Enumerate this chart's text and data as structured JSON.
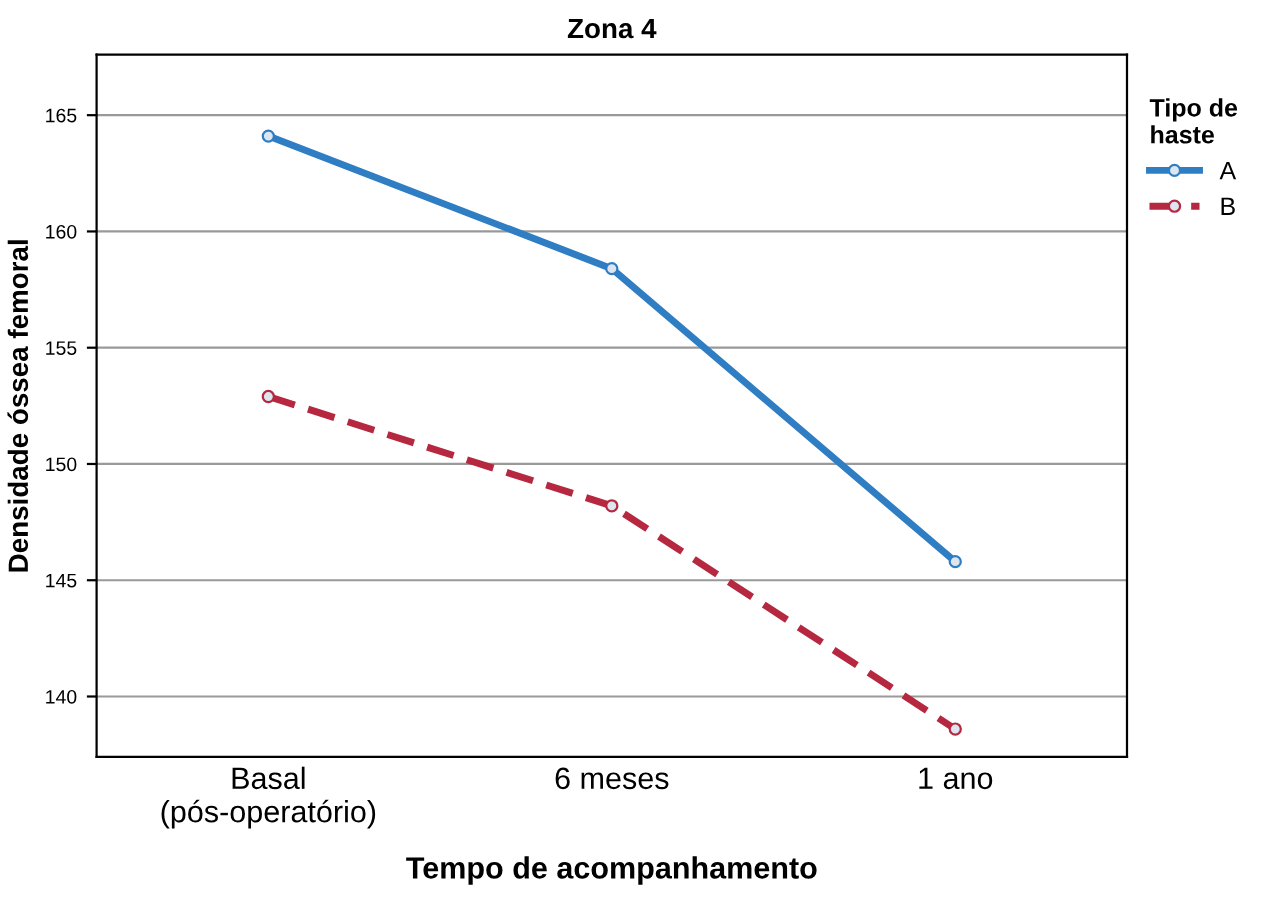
{
  "chart_data": {
    "type": "line",
    "title": "Zona 4",
    "xlabel": "Tempo de acompanhamento",
    "ylabel": "Densidade óssea femoral",
    "legend_title": "Tipo de\nhaste",
    "categories": [
      "Basal\n(pós-operatório)",
      "6 meses",
      "1 ano"
    ],
    "series": [
      {
        "name": "A",
        "color": "#2f7ec4",
        "values": [
          164.1,
          158.4,
          145.8
        ],
        "line_style": "solid"
      },
      {
        "name": "B",
        "color": "#b5283f",
        "values": [
          152.9,
          148.2,
          138.6
        ],
        "line_style": "dashed"
      }
    ],
    "ylim": [
      137.4,
      167.6
    ],
    "yticks": [
      140,
      145,
      150,
      155,
      160,
      165
    ],
    "grid": "y",
    "legend": "top right",
    "marker": "circle"
  }
}
